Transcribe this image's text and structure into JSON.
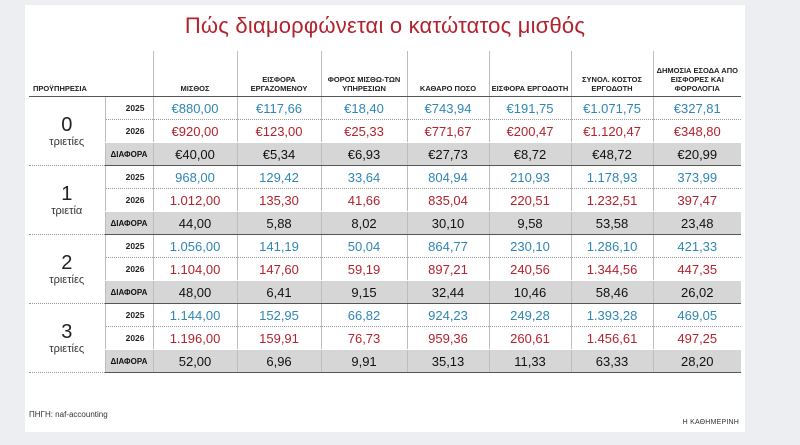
{
  "title": "Πώς διαμορφώνεται ο κατώτατος μισθός",
  "headers": [
    "ΠΡΟΫΠΗΡΕΣΙΑ",
    "ΜΙΣΘΟΣ",
    "ΕΙΣΦΟΡΑ ΕΡΓΑΖΟΜΕΝΟΥ",
    "ΦΟΡΟΣ ΜΙΣΘΩ-ΤΩΝ ΥΠΗΡΕΣΙΩΝ",
    "ΚΑΘΑΡΟ ΠΟΣΟ",
    "ΕΙΣΦΟΡΑ ΕΡΓΟΔΟΤΗ",
    "ΣΥΝΟΛ. ΚΟΣΤΟΣ ΕΡΓΟΔΟΤΗ",
    "ΔΗΜΟΣΙΑ ΕΣΟΔΑ ΑΠΟ ΕΙΣΦΟΡΕΣ ΚΑΙ ΦΟΡΟΛΟΓΙΑ"
  ],
  "groups": [
    {
      "num": "0",
      "word": "τριετίες",
      "rows": [
        {
          "label": "2025",
          "kind": "r2025",
          "values": [
            "€880,00",
            "€117,66",
            "€18,40",
            "€743,94",
            "€191,75",
            "€1.071,75",
            "€327,81"
          ]
        },
        {
          "label": "2026",
          "kind": "r2026",
          "values": [
            "€920,00",
            "€123,00",
            "€25,33",
            "€771,67",
            "€200,47",
            "€1.120,47",
            "€348,80"
          ]
        },
        {
          "label": "ΔΙΑΦΟΡΑ",
          "kind": "rdiff",
          "values": [
            "€40,00",
            "€5,34",
            "€6,93",
            "€27,73",
            "€8,72",
            "€48,72",
            "€20,99"
          ]
        }
      ]
    },
    {
      "num": "1",
      "word": "τριετία",
      "rows": [
        {
          "label": "2025",
          "kind": "r2025",
          "values": [
            "968,00",
            "129,42",
            "33,64",
            "804,94",
            "210,93",
            "1.178,93",
            "373,99"
          ]
        },
        {
          "label": "2026",
          "kind": "r2026",
          "values": [
            "1.012,00",
            "135,30",
            "41,66",
            "835,04",
            "220,51",
            "1.232,51",
            "397,47"
          ]
        },
        {
          "label": "ΔΙΑΦΟΡΑ",
          "kind": "rdiff",
          "values": [
            "44,00",
            "5,88",
            "8,02",
            "30,10",
            "9,58",
            "53,58",
            "23,48"
          ]
        }
      ]
    },
    {
      "num": "2",
      "word": "τριετίες",
      "rows": [
        {
          "label": "2025",
          "kind": "r2025",
          "values": [
            "1.056,00",
            "141,19",
            "50,04",
            "864,77",
            "230,10",
            "1.286,10",
            "421,33"
          ]
        },
        {
          "label": "2026",
          "kind": "r2026",
          "values": [
            "1.104,00",
            "147,60",
            "59,19",
            "897,21",
            "240,56",
            "1.344,56",
            "447,35"
          ]
        },
        {
          "label": "ΔΙΑΦΟΡΑ",
          "kind": "rdiff",
          "values": [
            "48,00",
            "6,41",
            "9,15",
            "32,44",
            "10,46",
            "58,46",
            "26,02"
          ]
        }
      ]
    },
    {
      "num": "3",
      "word": "τριετίες",
      "rows": [
        {
          "label": "2025",
          "kind": "r2025",
          "values": [
            "1.144,00",
            "152,95",
            "66,82",
            "924,23",
            "249,28",
            "1.393,28",
            "469,05"
          ]
        },
        {
          "label": "2026",
          "kind": "r2026",
          "values": [
            "1.196,00",
            "159,91",
            "76,73",
            "959,36",
            "260,61",
            "1.456,61",
            "497,25"
          ]
        },
        {
          "label": "ΔΙΑΦΟΡΑ",
          "kind": "rdiff",
          "values": [
            "52,00",
            "6,96",
            "9,91",
            "35,13",
            "11,33",
            "63,33",
            "28,20"
          ]
        }
      ]
    }
  ],
  "source": "ΠΗΓΗ: naf-accounting",
  "brand": "Η ΚΑΘΗΜΕΡΙΝΗ",
  "colors": {
    "title": "#b3222e",
    "year2025": "#2f86b5",
    "year2026": "#b3222e",
    "diff_bg": "#d6d6d6"
  }
}
